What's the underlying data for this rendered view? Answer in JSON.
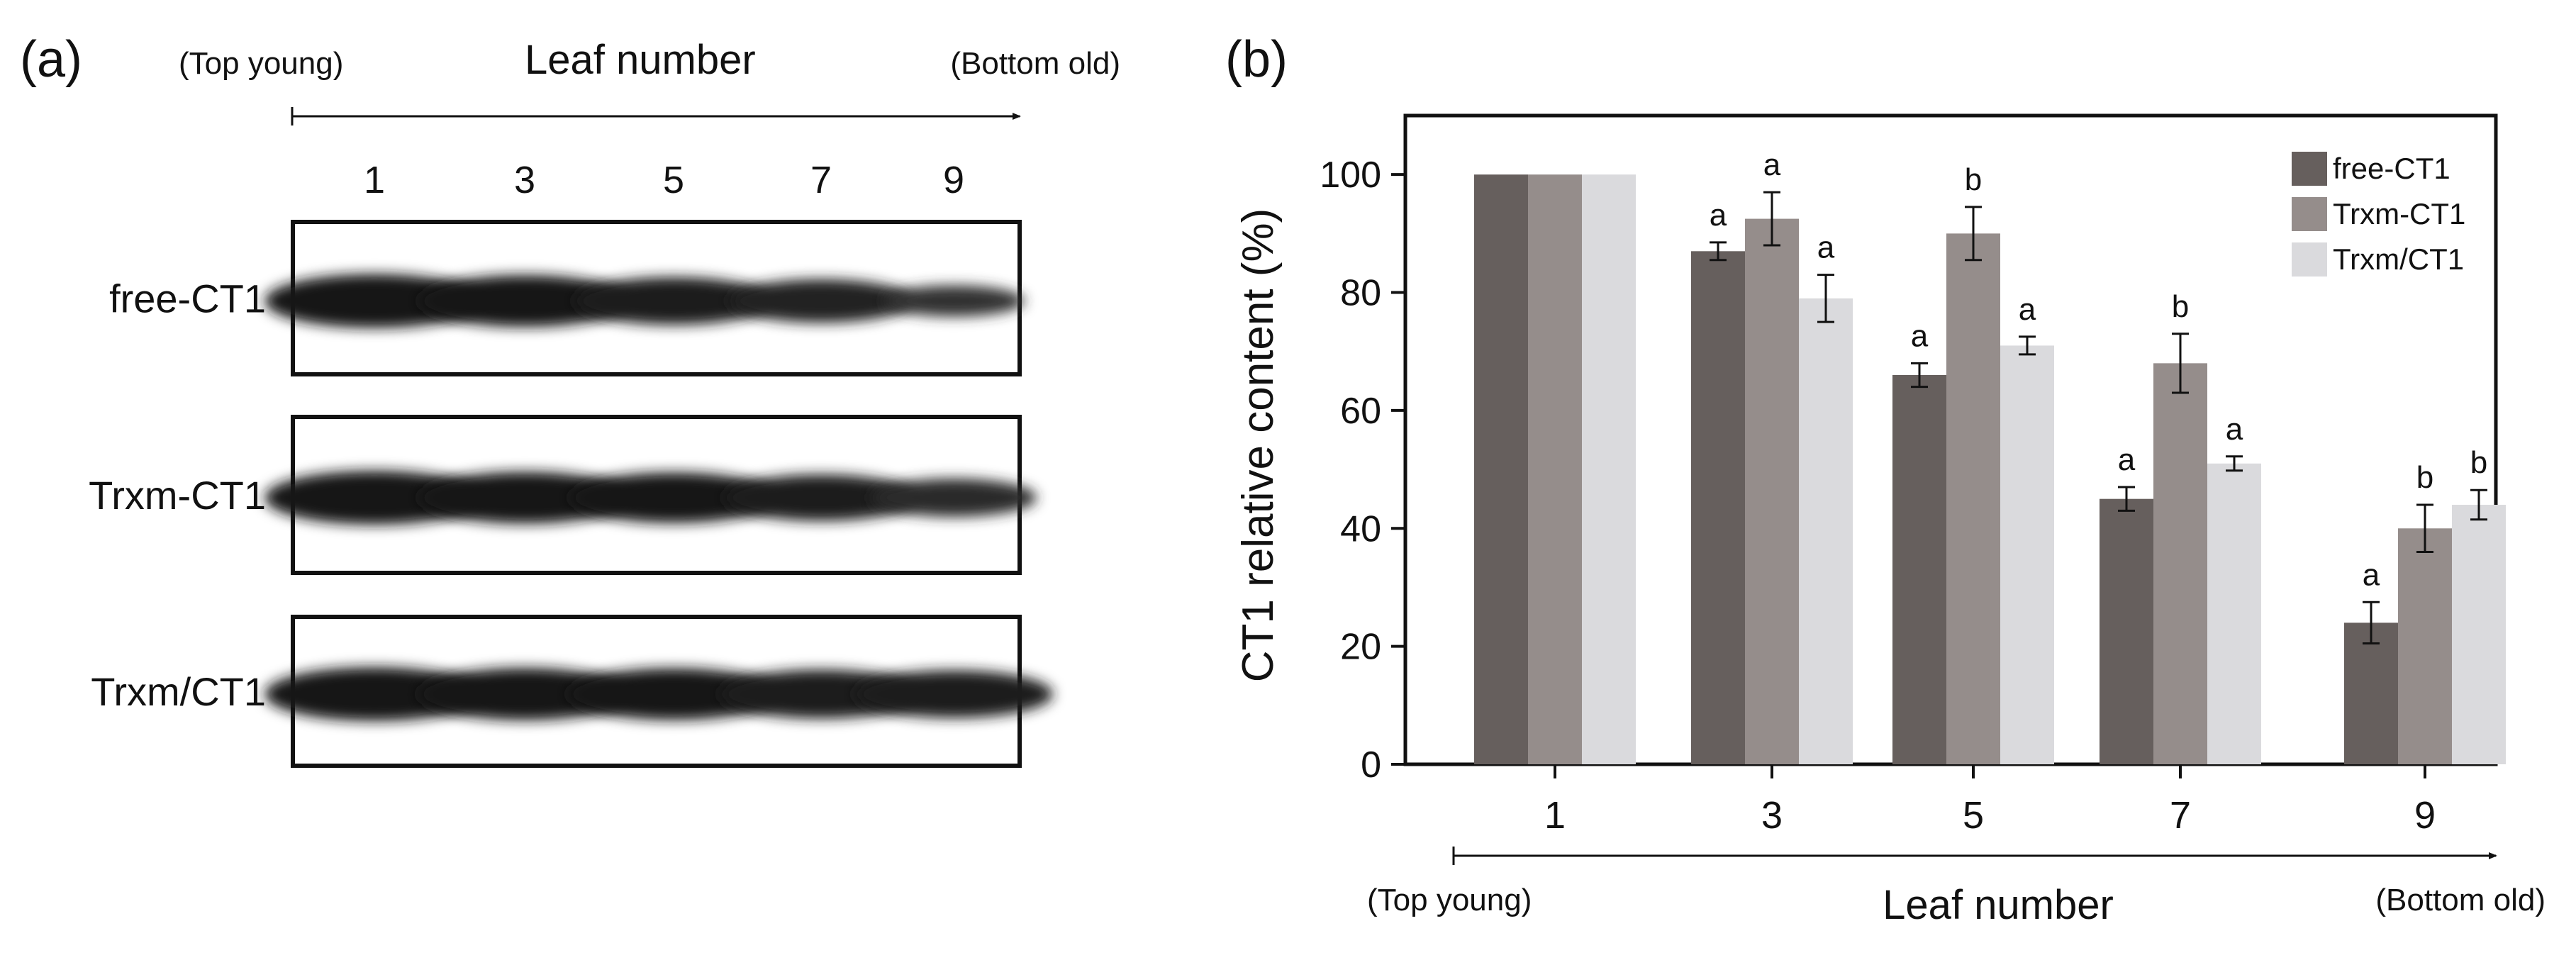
{
  "panel_a": {
    "label": "(a)",
    "top_label": "(Top young)",
    "bottom_label": "(Bottom old)",
    "axis_title": "Leaf number",
    "lanes": [
      "1",
      "3",
      "5",
      "7",
      "9"
    ],
    "blots": [
      {
        "name": "free-CT1",
        "band_intensity": [
          1.0,
          0.95,
          0.85,
          0.75,
          0.45
        ]
      },
      {
        "name": "Trxm-CT1",
        "band_intensity": [
          1.0,
          0.95,
          0.92,
          0.82,
          0.62
        ]
      },
      {
        "name": "Trxm/CT1",
        "band_intensity": [
          1.0,
          0.96,
          0.95,
          0.88,
          0.85
        ]
      }
    ]
  },
  "chart_data": {
    "type": "bar",
    "panel_label": "(b)",
    "title": "",
    "xlabel": "Leaf number",
    "ylabel": "CT1 relative content (%)",
    "x_start_label": "(Top young)",
    "x_end_label": "(Bottom old)",
    "categories": [
      "1",
      "3",
      "5",
      "7",
      "9"
    ],
    "ylim": [
      0,
      110
    ],
    "yticks": [
      0,
      20,
      40,
      60,
      80,
      100
    ],
    "grid": false,
    "legend_position": "top-right",
    "series": [
      {
        "name": "free-CT1",
        "color": "#665f5d",
        "values": [
          100,
          87,
          66,
          45,
          24
        ],
        "errors": [
          0,
          1.5,
          2,
          2,
          3.5
        ],
        "letters": [
          "",
          "a",
          "a",
          "a",
          "a"
        ]
      },
      {
        "name": "Trxm-CT1",
        "color": "#958d8b",
        "values": [
          100,
          92.5,
          90,
          68,
          40
        ],
        "errors": [
          0,
          4.5,
          4.5,
          5,
          4
        ],
        "letters": [
          "",
          "a",
          "b",
          "b",
          "b"
        ]
      },
      {
        "name": "Trxm/CT1",
        "color": "#dadadd",
        "values": [
          100,
          79,
          71,
          51,
          44
        ],
        "errors": [
          0,
          4,
          1.5,
          1.2,
          2.5
        ],
        "letters": [
          "",
          "a",
          "a",
          "a",
          "b"
        ]
      }
    ]
  }
}
